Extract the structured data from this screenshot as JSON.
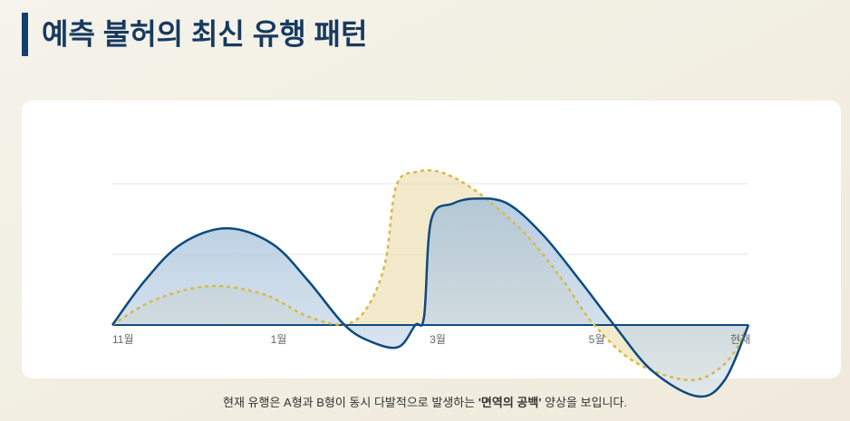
{
  "chart_data": {
    "type": "area",
    "title": "예측 불허의 최신 유행 패턴",
    "caption": {
      "before": "현재 유행은 A형과 B형이 동시 다발적으로 발생하는 ",
      "emphasis": "'면역의 공백'",
      "after": " 양상을 보입니다."
    },
    "xlim": [
      0,
      8
    ],
    "xticks": [
      {
        "value": 0,
        "label": "11월"
      },
      {
        "value": 2,
        "label": "1월"
      },
      {
        "value": 4,
        "label": "3월"
      },
      {
        "value": 6,
        "label": "5월"
      },
      {
        "value": 8,
        "label": "현재"
      }
    ],
    "ylim": [
      -1.2,
      2.5
    ],
    "yticks": [
      0,
      1,
      2
    ],
    "grid": true,
    "series": [
      {
        "color": "#d9b84a",
        "style": "dashed",
        "x": [
          0,
          0.52,
          1.21,
          1.89,
          2.46,
          2.92,
          3.2,
          3.43,
          3.57,
          3.83,
          4.17,
          4.63,
          5.2,
          5.66,
          6.06,
          6.58,
          7.27,
          7.72,
          8
        ],
        "values": [
          0,
          0.35,
          0.55,
          0.44,
          0.12,
          0.01,
          0.24,
          0.88,
          1.97,
          2.17,
          2.15,
          1.85,
          1.28,
          0.64,
          0,
          -0.53,
          -0.78,
          -0.53,
          0
        ]
      },
      {
        "color": "#0d4a7e",
        "style": "solid",
        "x": [
          0,
          0.41,
          0.87,
          1.44,
          2.01,
          2.46,
          2.92,
          3.26,
          3.6,
          3.81,
          3.92,
          4.01,
          4.28,
          4.57,
          4.97,
          5.42,
          5.88,
          6.31,
          6.79,
          7.36,
          7.7,
          8
        ],
        "values": [
          0,
          0.63,
          1.15,
          1.37,
          1.15,
          0.63,
          0,
          -0.24,
          -0.31,
          0,
          0.12,
          1.49,
          1.72,
          1.79,
          1.72,
          1.27,
          0.63,
          0,
          -0.65,
          -1.01,
          -0.78,
          0
        ]
      }
    ]
  }
}
